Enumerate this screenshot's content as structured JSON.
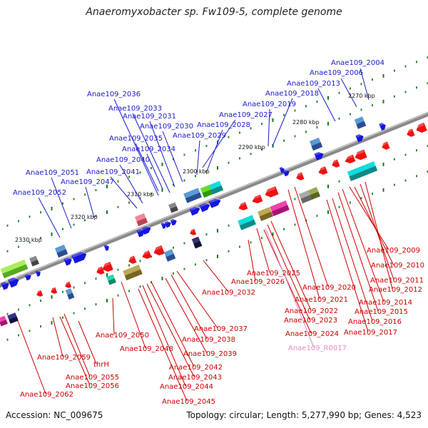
{
  "title": "Anaeromyxobacter sp. Fw109-5, complete genome",
  "footer": {
    "accession": "Accession: NC_009675",
    "topology": "Topology: circular; Length: 5,277,990 bp; Genes: 4,523"
  },
  "scale_ticks": [
    "2270 kbp",
    "2280 kbp",
    "2290 kbp",
    "2300 kbp",
    "2310 kbp",
    "2320 kbp",
    "2330 kbp"
  ],
  "colors": {
    "forward_label": "#1a1acc",
    "reverse_label": "#cc0000",
    "rna_label": "#e38cc8",
    "forward_gene": "#1515dd",
    "reverse_gene": "#ee1111",
    "backbone": "#777777"
  },
  "labels_forward": [
    "Anae109_2004",
    "Anae109_2006",
    "Anae109_2013",
    "Anae109_2018",
    "Anae109_2019",
    "Anae109_2027",
    "Anae109_2028",
    "Anae109_2029",
    "Anae109_2030",
    "Anae109_2031",
    "Anae109_2033",
    "Anae109_2034",
    "Anae109_2035",
    "Anae109_2036",
    "Anae109_2040",
    "Anae109_2041",
    "Anae109_2047",
    "Anae109_2051",
    "Anae109_2052"
  ],
  "labels_reverse": [
    "Anae109_2009",
    "Anae109_2010",
    "Anae109_2011",
    "Anae109_2012",
    "Anae109_2014",
    "Anae109_2015",
    "Anae109_2016",
    "Anae109_2017",
    "Anae109_2020",
    "Anae109_2021",
    "Anae109_2022",
    "Anae109_2023",
    "Anae109_2024",
    "Anae109_2025",
    "Anae109_2026",
    "Anae109_2032",
    "Anae109_2037",
    "Anae109_2038",
    "Anae109_2039",
    "Anae109_2042",
    "Anae109_2043",
    "Anae109_2044",
    "Anae109_2045",
    "Anae109_2048",
    "Anae109_2050",
    "Anae109_2055",
    "Anae109_2056",
    "Anae109_2059",
    "Anae109_2062",
    "thrH"
  ],
  "labels_rna": [
    "Anae109_R0017"
  ]
}
